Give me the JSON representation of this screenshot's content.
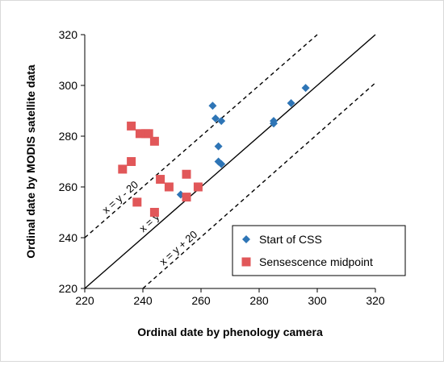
{
  "chart_data": {
    "type": "scatter",
    "xlabel": "Ordinal date by phenology camera",
    "ylabel": "Ordinal date by MODIS satellite data",
    "xlim": [
      220,
      320
    ],
    "ylim": [
      220,
      320
    ],
    "xticks": [
      "220",
      "240",
      "260",
      "280",
      "300",
      "320"
    ],
    "yticks": [
      "220",
      "240",
      "260",
      "280",
      "300",
      "320"
    ],
    "grid": false,
    "legend_position": "bottom-right",
    "series": [
      {
        "name": "Start of CSS",
        "marker": "diamond",
        "color": "#2e75b6",
        "points": [
          {
            "x": 253,
            "y": 257
          },
          {
            "x": 264,
            "y": 292
          },
          {
            "x": 265,
            "y": 287
          },
          {
            "x": 266,
            "y": 276
          },
          {
            "x": 266,
            "y": 270
          },
          {
            "x": 267,
            "y": 286
          },
          {
            "x": 267,
            "y": 269
          },
          {
            "x": 285,
            "y": 286
          },
          {
            "x": 285,
            "y": 285
          },
          {
            "x": 291,
            "y": 293
          },
          {
            "x": 296,
            "y": 299
          }
        ]
      },
      {
        "name": "Sensescence midpoint",
        "marker": "square",
        "color": "#e15759",
        "points": [
          {
            "x": 233,
            "y": 267
          },
          {
            "x": 236,
            "y": 284
          },
          {
            "x": 236,
            "y": 270
          },
          {
            "x": 238,
            "y": 254
          },
          {
            "x": 239,
            "y": 281
          },
          {
            "x": 241,
            "y": 281
          },
          {
            "x": 242,
            "y": 281
          },
          {
            "x": 244,
            "y": 278
          },
          {
            "x": 244,
            "y": 250
          },
          {
            "x": 246,
            "y": 263
          },
          {
            "x": 249,
            "y": 260
          },
          {
            "x": 255,
            "y": 265
          },
          {
            "x": 255,
            "y": 256
          },
          {
            "x": 259,
            "y": 260
          }
        ]
      }
    ],
    "reference_lines": [
      {
        "label": "x = y - 20",
        "offset": 20,
        "style": "dashed"
      },
      {
        "label": "x = y",
        "offset": 0,
        "style": "solid"
      },
      {
        "label": "x = y + 20",
        "offset": -20,
        "style": "dashed"
      }
    ]
  }
}
